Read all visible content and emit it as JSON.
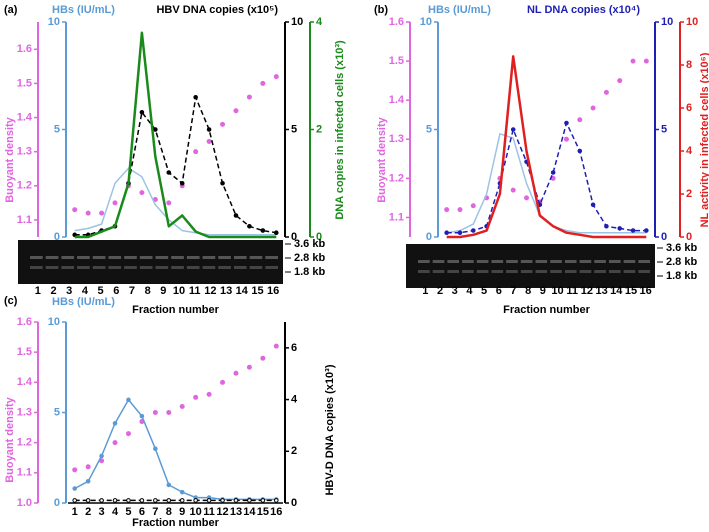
{
  "chart_data": [
    {
      "type": "line",
      "panel_label": "(a)",
      "x_label": "Fraction number",
      "categories": [
        "1",
        "2",
        "3",
        "4",
        "5",
        "6",
        "7",
        "8",
        "9",
        "10",
        "11",
        "12",
        "13",
        "14",
        "15",
        "16"
      ],
      "gel_labels": [
        "3.6 kb",
        "2.8 kb",
        "1.8 kb"
      ],
      "axes": [
        {
          "label": "Buoyant density",
          "color": "#e066e0",
          "lim": [
            1.05,
            1.68
          ],
          "ticks": [
            1.1,
            1.2,
            1.3,
            1.4,
            1.5,
            1.6
          ]
        },
        {
          "label": "HBs (IU/mL)",
          "color": "#5b9bd5",
          "lim": [
            0,
            10
          ],
          "ticks": [
            0,
            5,
            10
          ]
        },
        {
          "label": "HBV DNA copies (x10⁵)",
          "color": "#000000",
          "lim": [
            0,
            10
          ],
          "ticks": [
            0,
            5,
            10
          ]
        },
        {
          "label": "DNA copies in infected cells (x10³)",
          "color": "#1a8a1a",
          "lim": [
            0,
            4
          ],
          "ticks": [
            0,
            2,
            4
          ]
        }
      ],
      "series": [
        {
          "axis": 0,
          "style": "dots",
          "color": "#e066e0",
          "values": [
            1.13,
            1.12,
            1.12,
            1.15,
            1.2,
            1.18,
            1.16,
            1.15,
            1.2,
            1.3,
            1.33,
            1.38,
            1.42,
            1.46,
            1.5,
            1.52
          ]
        },
        {
          "axis": 1,
          "style": "line",
          "color": "#9cc3e6",
          "values": [
            0.3,
            0.4,
            0.6,
            2.5,
            3.2,
            2.8,
            1.5,
            0.8,
            0.3,
            0.2,
            0.1,
            0.1,
            0.1,
            0.1,
            0.1,
            0.1
          ]
        },
        {
          "axis": 2,
          "style": "dashed",
          "color": "#000000",
          "values": [
            0.1,
            0.1,
            0.3,
            0.5,
            2.5,
            5.8,
            5,
            3,
            2.5,
            6.5,
            5,
            2.5,
            1,
            0.5,
            0.3,
            0.2
          ]
        },
        {
          "axis": 3,
          "style": "thick",
          "color": "#1a8a1a",
          "values": [
            0,
            0,
            0.1,
            0.2,
            1,
            3.8,
            1.5,
            0.2,
            0.4,
            0.1,
            0,
            0,
            0,
            0,
            0,
            0
          ]
        }
      ]
    },
    {
      "type": "line",
      "panel_label": "(b)",
      "x_label": "Fraction number",
      "categories": [
        "1",
        "2",
        "3",
        "4",
        "5",
        "6",
        "7",
        "8",
        "9",
        "10",
        "11",
        "12",
        "13",
        "14",
        "15",
        "16"
      ],
      "gel_labels": [
        "3.6 kb",
        "2.8 kb",
        "1.8 kb"
      ],
      "axes": [
        {
          "label": "Buoyant density",
          "color": "#e066e0",
          "lim": [
            1.05,
            1.6
          ],
          "ticks": [
            1.1,
            1.2,
            1.3,
            1.4,
            1.5,
            1.6
          ]
        },
        {
          "label": "HBs (IU/mL)",
          "color": "#5b9bd5",
          "lim": [
            0,
            10
          ],
          "ticks": [
            0,
            5,
            10
          ]
        },
        {
          "label": "NL DNA copies (x10⁴)",
          "color": "#1f1fb4",
          "lim": [
            0,
            10
          ],
          "ticks": [
            0,
            5,
            10
          ]
        },
        {
          "label": "NL activity in infected cells (x10⁶)",
          "color": "#e02020",
          "lim": [
            0,
            10
          ],
          "ticks": [
            0,
            2,
            4,
            6,
            8,
            10
          ]
        }
      ],
      "series": [
        {
          "axis": 0,
          "style": "dots",
          "color": "#e066e0",
          "values": [
            1.12,
            1.12,
            1.13,
            1.15,
            1.2,
            1.17,
            1.15,
            1.14,
            1.2,
            1.3,
            1.35,
            1.38,
            1.42,
            1.45,
            1.5,
            1.5
          ]
        },
        {
          "axis": 1,
          "style": "line",
          "color": "#9cc3e6",
          "values": [
            0.2,
            0.3,
            0.6,
            2,
            4.8,
            4.6,
            2.5,
            1,
            0.5,
            0.3,
            0.2,
            0.2,
            0.2,
            0.2,
            0.2,
            0.2
          ]
        },
        {
          "axis": 2,
          "style": "dashed",
          "color": "#1f1fb4",
          "values": [
            0.2,
            0.2,
            0.3,
            0.5,
            2.5,
            5,
            3.5,
            1.5,
            3,
            5.3,
            4,
            1.5,
            0.5,
            0.4,
            0.3,
            0.3
          ]
        },
        {
          "axis": 3,
          "style": "thick",
          "color": "#e02020",
          "values": [
            0,
            0,
            0.1,
            0.3,
            2,
            8.4,
            4,
            1,
            0.5,
            0.2,
            0.1,
            0,
            0,
            0,
            0,
            0
          ]
        }
      ]
    },
    {
      "type": "line",
      "panel_label": "(c)",
      "x_label": "Fraction number",
      "categories": [
        "1",
        "2",
        "3",
        "4",
        "5",
        "6",
        "7",
        "8",
        "9",
        "10",
        "11",
        "12",
        "13",
        "14",
        "15",
        "16"
      ],
      "axes": [
        {
          "label": "Buoyant density",
          "color": "#e066e0",
          "lim": [
            1.0,
            1.6
          ],
          "ticks": [
            {
              "value": 1.0,
              "label": "1.0"
            },
            1.1,
            1.2,
            1.3,
            1.4,
            1.5,
            1.6
          ]
        },
        {
          "label": "HBs (IU/mL)",
          "color": "#5b9bd5",
          "lim": [
            0,
            10
          ],
          "ticks": [
            0,
            5,
            10
          ]
        },
        {
          "label": "HBV-D DNA copies (x10³)",
          "color": "#000000",
          "lim": [
            0,
            7
          ],
          "ticks": [
            0,
            2,
            4,
            6
          ]
        }
      ],
      "series": [
        {
          "axis": 0,
          "style": "dots",
          "color": "#e066e0",
          "values": [
            1.11,
            1.12,
            1.14,
            1.2,
            1.23,
            1.27,
            1.3,
            1.3,
            1.32,
            1.35,
            1.36,
            1.4,
            1.43,
            1.45,
            1.48,
            1.52
          ]
        },
        {
          "axis": 1,
          "style": "marked",
          "color": "#5b9bd5",
          "values": [
            0.8,
            1.2,
            2.6,
            4.4,
            5.7,
            4.8,
            3,
            1,
            0.6,
            0.3,
            0.3,
            0.2,
            0.2,
            0.2,
            0.2,
            0.2
          ]
        },
        {
          "axis": 2,
          "style": "dashed",
          "color": "#000000",
          "values": [
            0.1,
            0.1,
            0.1,
            0.1,
            0.1,
            0.1,
            0.1,
            0.1,
            0.1,
            0.1,
            0.1,
            0.1,
            0.1,
            0.1,
            0.1,
            0.1
          ]
        }
      ]
    }
  ]
}
